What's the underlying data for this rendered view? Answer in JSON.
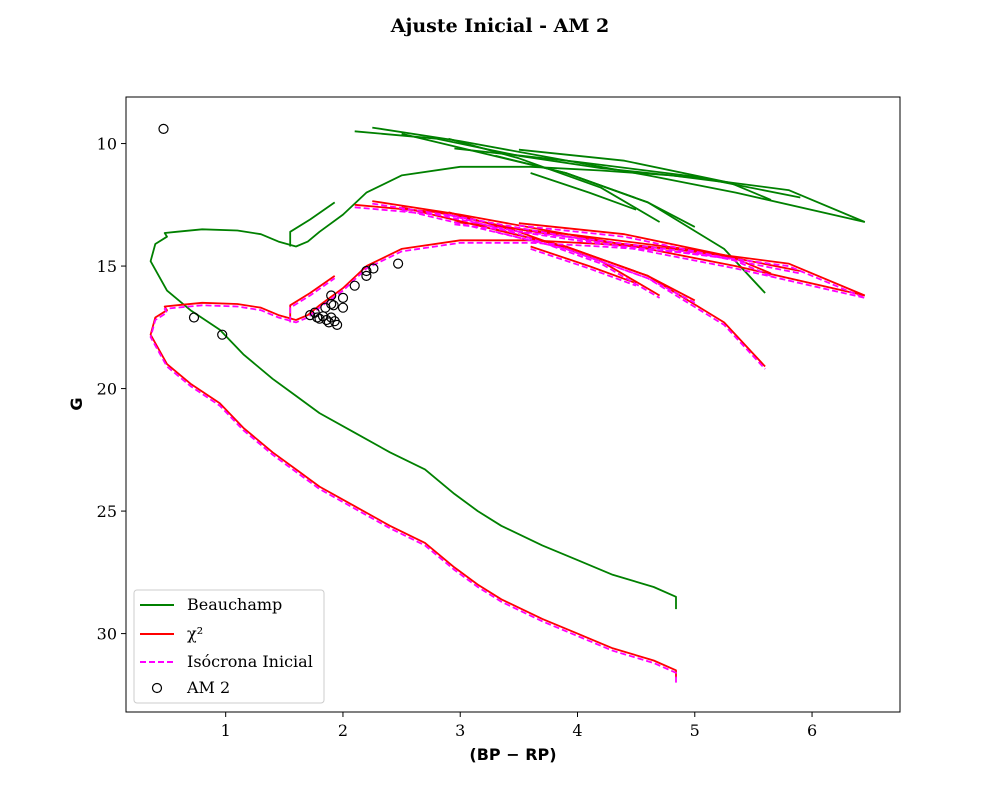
{
  "chart_data": {
    "type": "line",
    "title": "Ajuste Inicial - AM 2",
    "xlabel": "(BP − RP)",
    "ylabel": "G",
    "xlim": [
      0.15,
      6.75
    ],
    "ylim": [
      33.2,
      8.1
    ],
    "y_inverted": true,
    "x_ticks": [
      1,
      2,
      3,
      4,
      5,
      6
    ],
    "y_ticks": [
      10,
      15,
      20,
      25,
      30
    ],
    "grid": false,
    "legend_position": "lower-left",
    "colors": {
      "Beauchamp": "#008000",
      "chi2": "#ff0000",
      "isocrona": "#ff00ff",
      "points": "#000000"
    },
    "series": [
      {
        "name": "Beauchamp",
        "style": "solid",
        "color": "#008000",
        "segments": [
          [
            [
              4.84,
              29.0
            ],
            [
              4.84,
              28.5
            ],
            [
              4.65,
              28.1
            ],
            [
              4.3,
              27.6
            ],
            [
              4.0,
              27.0
            ],
            [
              3.7,
              26.4
            ],
            [
              3.35,
              25.6
            ],
            [
              3.15,
              25.0
            ],
            [
              2.95,
              24.3
            ],
            [
              2.7,
              23.3
            ],
            [
              2.4,
              22.6
            ],
            [
              2.1,
              21.8
            ],
            [
              1.8,
              21.0
            ],
            [
              1.6,
              20.3
            ],
            [
              1.4,
              19.6
            ],
            [
              1.15,
              18.6
            ],
            [
              0.95,
              17.6
            ],
            [
              0.7,
              16.8
            ],
            [
              0.5,
              16.0
            ],
            [
              0.36,
              14.8
            ],
            [
              0.4,
              14.1
            ],
            [
              0.5,
              13.8
            ],
            [
              0.48,
              13.65
            ],
            [
              0.58,
              13.6
            ],
            [
              0.8,
              13.5
            ],
            [
              1.1,
              13.55
            ],
            [
              1.3,
              13.7
            ],
            [
              1.45,
              14.0
            ],
            [
              1.6,
              14.2
            ],
            [
              1.7,
              14.0
            ],
            [
              1.8,
              13.6
            ],
            [
              2.0,
              12.9
            ],
            [
              2.2,
              12.0
            ],
            [
              2.5,
              11.3
            ],
            [
              3.0,
              10.95
            ],
            [
              3.6,
              10.95
            ],
            [
              4.2,
              11.1
            ],
            [
              4.8,
              11.3
            ],
            [
              5.3,
              11.6
            ]
          ],
          [
            [
              1.55,
              14.2
            ],
            [
              1.55,
              13.6
            ],
            [
              1.72,
              13.1
            ],
            [
              1.93,
              12.4
            ]
          ],
          [
            [
              2.1,
              9.5
            ],
            [
              2.8,
              9.8
            ],
            [
              3.5,
              10.5
            ],
            [
              4.2,
              11.0
            ],
            [
              5.0,
              11.4
            ],
            [
              5.8,
              11.9
            ],
            [
              6.45,
              13.2
            ]
          ],
          [
            [
              2.25,
              9.35
            ],
            [
              3.0,
              9.9
            ],
            [
              3.8,
              10.6
            ],
            [
              4.6,
              11.3
            ],
            [
              5.35,
              12.0
            ],
            [
              6.45,
              13.2
            ]
          ],
          [
            [
              2.5,
              9.6
            ],
            [
              3.2,
              10.4
            ],
            [
              3.9,
              11.2
            ],
            [
              4.6,
              12.4
            ],
            [
              5.25,
              14.3
            ],
            [
              5.6,
              16.1
            ]
          ],
          [
            [
              2.9,
              9.8
            ],
            [
              3.5,
              10.6
            ],
            [
              4.2,
              11.8
            ],
            [
              4.7,
              13.2
            ]
          ],
          [
            [
              2.95,
              10.2
            ],
            [
              4.0,
              10.75
            ],
            [
              5.0,
              11.35
            ],
            [
              5.9,
              12.2
            ]
          ],
          [
            [
              3.3,
              10.5
            ],
            [
              3.9,
              11.2
            ],
            [
              4.6,
              12.4
            ],
            [
              5.0,
              13.4
            ]
          ],
          [
            [
              3.5,
              10.25
            ],
            [
              4.4,
              10.7
            ],
            [
              5.3,
              11.6
            ],
            [
              5.65,
              12.3
            ]
          ],
          [
            [
              3.6,
              11.2
            ],
            [
              4.1,
              12.0
            ],
            [
              4.5,
              12.7
            ]
          ]
        ]
      },
      {
        "name": "χ²",
        "style": "solid",
        "color": "#ff0000",
        "segments": [
          [
            [
              4.84,
              31.8
            ],
            [
              4.84,
              31.5
            ],
            [
              4.65,
              31.1
            ],
            [
              4.3,
              30.6
            ],
            [
              4.0,
              30.0
            ],
            [
              3.7,
              29.4
            ],
            [
              3.35,
              28.6
            ],
            [
              3.15,
              28.0
            ],
            [
              2.95,
              27.3
            ],
            [
              2.7,
              26.3
            ],
            [
              2.4,
              25.6
            ],
            [
              2.1,
              24.8
            ],
            [
              1.8,
              24.0
            ],
            [
              1.6,
              23.3
            ],
            [
              1.4,
              22.6
            ],
            [
              1.15,
              21.6
            ],
            [
              0.95,
              20.6
            ],
            [
              0.7,
              19.8
            ],
            [
              0.5,
              19.0
            ],
            [
              0.36,
              17.8
            ],
            [
              0.4,
              17.1
            ],
            [
              0.5,
              16.8
            ],
            [
              0.48,
              16.65
            ],
            [
              0.58,
              16.6
            ],
            [
              0.8,
              16.5
            ],
            [
              1.1,
              16.55
            ],
            [
              1.3,
              16.7
            ],
            [
              1.45,
              17.0
            ],
            [
              1.6,
              17.2
            ],
            [
              1.7,
              17.0
            ],
            [
              1.8,
              16.6
            ],
            [
              2.0,
              15.9
            ],
            [
              2.2,
              15.0
            ],
            [
              2.5,
              14.3
            ],
            [
              3.0,
              13.95
            ],
            [
              3.6,
              13.95
            ],
            [
              4.2,
              14.1
            ],
            [
              4.8,
              14.3
            ],
            [
              5.3,
              14.6
            ]
          ],
          [
            [
              1.55,
              17.2
            ],
            [
              1.55,
              16.6
            ],
            [
              1.72,
              16.1
            ],
            [
              1.93,
              15.4
            ]
          ],
          [
            [
              2.1,
              12.5
            ],
            [
              2.8,
              12.8
            ],
            [
              3.5,
              13.5
            ],
            [
              4.2,
              14.0
            ],
            [
              5.0,
              14.4
            ],
            [
              5.8,
              14.9
            ],
            [
              6.45,
              16.2
            ]
          ],
          [
            [
              2.25,
              12.35
            ],
            [
              3.0,
              12.9
            ],
            [
              3.8,
              13.6
            ],
            [
              4.6,
              14.3
            ],
            [
              5.35,
              15.0
            ],
            [
              6.45,
              16.2
            ]
          ],
          [
            [
              2.5,
              12.6
            ],
            [
              3.2,
              13.4
            ],
            [
              3.9,
              14.2
            ],
            [
              4.6,
              15.4
            ],
            [
              5.25,
              17.3
            ],
            [
              5.6,
              19.1
            ]
          ],
          [
            [
              2.9,
              12.8
            ],
            [
              3.5,
              13.6
            ],
            [
              4.2,
              14.8
            ],
            [
              4.7,
              16.2
            ]
          ],
          [
            [
              2.95,
              13.2
            ],
            [
              4.0,
              13.75
            ],
            [
              5.0,
              14.35
            ],
            [
              5.9,
              15.2
            ]
          ],
          [
            [
              3.3,
              13.5
            ],
            [
              3.9,
              14.2
            ],
            [
              4.6,
              15.4
            ],
            [
              5.0,
              16.4
            ]
          ],
          [
            [
              3.5,
              13.25
            ],
            [
              4.4,
              13.7
            ],
            [
              5.3,
              14.6
            ],
            [
              5.65,
              15.3
            ]
          ],
          [
            [
              3.6,
              14.2
            ],
            [
              4.1,
              15.0
            ],
            [
              4.5,
              15.7
            ]
          ]
        ]
      },
      {
        "name": "Isócrona Inicial",
        "style": "dashed",
        "color": "#ff00ff",
        "segments": [
          [
            [
              4.84,
              32.0
            ],
            [
              4.84,
              31.6
            ],
            [
              4.65,
              31.2
            ],
            [
              4.3,
              30.7
            ],
            [
              4.0,
              30.1
            ],
            [
              3.7,
              29.5
            ],
            [
              3.35,
              28.7
            ],
            [
              3.15,
              28.1
            ],
            [
              2.95,
              27.4
            ],
            [
              2.7,
              26.4
            ],
            [
              2.4,
              25.7
            ],
            [
              2.1,
              24.9
            ],
            [
              1.8,
              24.1
            ],
            [
              1.6,
              23.4
            ],
            [
              1.4,
              22.7
            ],
            [
              1.15,
              21.7
            ],
            [
              0.95,
              20.7
            ],
            [
              0.7,
              19.9
            ],
            [
              0.5,
              19.1
            ],
            [
              0.36,
              17.9
            ],
            [
              0.4,
              17.2
            ],
            [
              0.5,
              16.9
            ],
            [
              0.48,
              16.75
            ],
            [
              0.58,
              16.7
            ],
            [
              0.8,
              16.6
            ],
            [
              1.1,
              16.65
            ],
            [
              1.3,
              16.8
            ],
            [
              1.45,
              17.1
            ],
            [
              1.6,
              17.3
            ],
            [
              1.7,
              17.1
            ],
            [
              1.8,
              16.7
            ],
            [
              2.0,
              16.0
            ],
            [
              2.2,
              15.1
            ],
            [
              2.5,
              14.4
            ],
            [
              3.0,
              14.05
            ],
            [
              3.6,
              14.05
            ],
            [
              4.2,
              14.2
            ],
            [
              4.8,
              14.4
            ],
            [
              5.3,
              14.7
            ]
          ],
          [
            [
              1.55,
              17.3
            ],
            [
              1.55,
              16.7
            ],
            [
              1.72,
              16.2
            ],
            [
              1.93,
              15.5
            ]
          ],
          [
            [
              2.1,
              12.6
            ],
            [
              2.8,
              12.9
            ],
            [
              3.5,
              13.6
            ],
            [
              4.2,
              14.1
            ],
            [
              5.0,
              14.5
            ],
            [
              5.8,
              15.0
            ],
            [
              6.45,
              16.3
            ]
          ],
          [
            [
              2.25,
              12.45
            ],
            [
              3.0,
              13.0
            ],
            [
              3.8,
              13.7
            ],
            [
              4.6,
              14.4
            ],
            [
              5.35,
              15.1
            ],
            [
              6.45,
              16.3
            ]
          ],
          [
            [
              2.5,
              12.7
            ],
            [
              3.2,
              13.5
            ],
            [
              3.9,
              14.3
            ],
            [
              4.6,
              15.5
            ],
            [
              5.25,
              17.4
            ],
            [
              5.6,
              19.2
            ]
          ],
          [
            [
              2.9,
              12.9
            ],
            [
              3.5,
              13.7
            ],
            [
              4.2,
              14.9
            ],
            [
              4.7,
              16.3
            ]
          ],
          [
            [
              2.95,
              13.3
            ],
            [
              4.0,
              13.85
            ],
            [
              5.0,
              14.45
            ],
            [
              5.9,
              15.3
            ]
          ],
          [
            [
              3.3,
              13.6
            ],
            [
              3.9,
              14.3
            ],
            [
              4.6,
              15.5
            ],
            [
              5.0,
              16.5
            ]
          ],
          [
            [
              3.5,
              13.35
            ],
            [
              4.4,
              13.8
            ],
            [
              5.3,
              14.7
            ],
            [
              5.65,
              15.4
            ]
          ],
          [
            [
              3.6,
              14.3
            ],
            [
              4.1,
              15.1
            ],
            [
              4.5,
              15.8
            ]
          ]
        ]
      },
      {
        "name": "AM 2",
        "style": "open-circle",
        "color": "#000000",
        "points": [
          [
            0.47,
            9.4
          ],
          [
            0.73,
            17.1
          ],
          [
            0.97,
            17.8
          ],
          [
            1.72,
            17.0
          ],
          [
            1.76,
            16.9
          ],
          [
            1.78,
            17.1
          ],
          [
            1.8,
            17.15
          ],
          [
            1.83,
            17.05
          ],
          [
            1.85,
            16.7
          ],
          [
            1.86,
            17.2
          ],
          [
            1.88,
            17.3
          ],
          [
            1.9,
            17.1
          ],
          [
            1.9,
            16.55
          ],
          [
            1.92,
            16.6
          ],
          [
            1.9,
            16.2
          ],
          [
            1.93,
            17.25
          ],
          [
            1.95,
            17.4
          ],
          [
            2.0,
            16.3
          ],
          [
            2.0,
            16.7
          ],
          [
            2.1,
            15.8
          ],
          [
            2.2,
            15.4
          ],
          [
            2.2,
            15.2
          ],
          [
            2.26,
            15.1
          ],
          [
            2.47,
            14.9
          ]
        ]
      }
    ]
  }
}
